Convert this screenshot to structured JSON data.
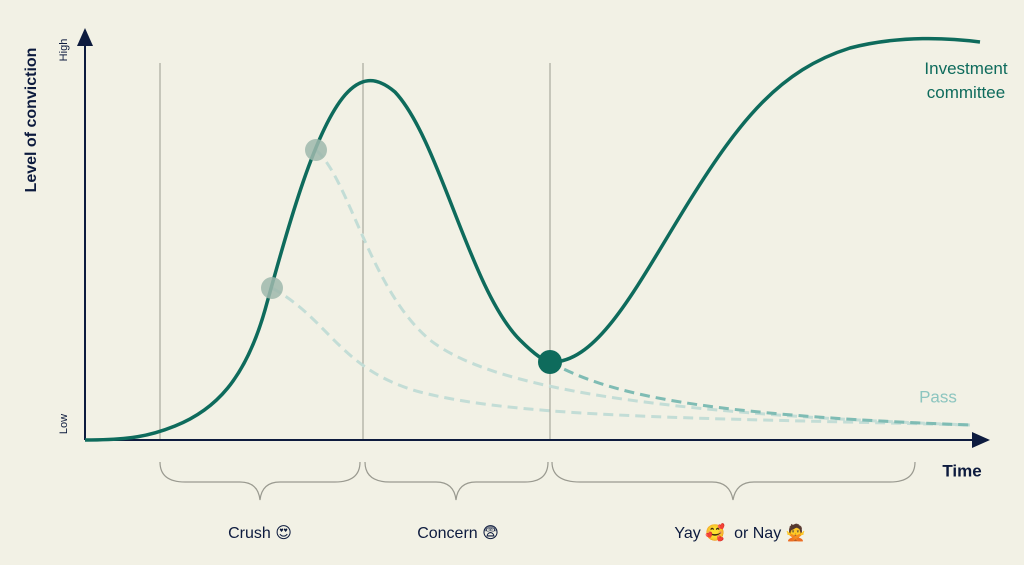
{
  "axes": {
    "y_label": "Level of conviction",
    "y_high": "High",
    "y_low": "Low",
    "x_label": "Time"
  },
  "curves": {
    "main": "Investment committee",
    "pass": "Pass"
  },
  "phases": [
    "Crush 😍",
    "Concern 😨",
    "Yay 🥰  or Nay 🙅"
  ]
}
